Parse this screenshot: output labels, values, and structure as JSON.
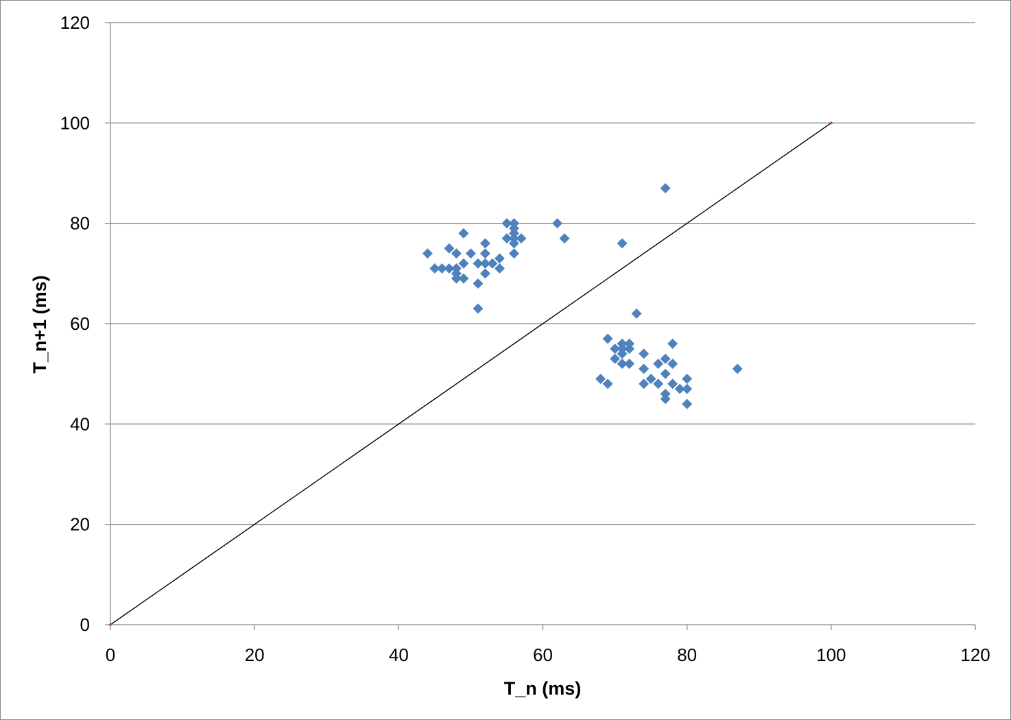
{
  "chart_data": {
    "type": "scatter",
    "title": "",
    "xlabel": "T_n (ms)",
    "ylabel": "T_n+1 (ms)",
    "xlim": [
      0,
      120
    ],
    "ylim": [
      0,
      120
    ],
    "x_ticks": [
      "0",
      "20",
      "40",
      "60",
      "80",
      "100",
      "120"
    ],
    "y_ticks": [
      "0",
      "20",
      "40",
      "60",
      "80",
      "100",
      "120"
    ],
    "grid": "horizontal major gridlines",
    "legend": "none",
    "series": [
      {
        "marker": "diamond",
        "color": "#4F81BD",
        "points": [
          [
            44,
            74
          ],
          [
            45,
            71
          ],
          [
            46,
            71
          ],
          [
            47,
            71
          ],
          [
            47,
            75
          ],
          [
            48,
            74
          ],
          [
            48,
            71
          ],
          [
            48,
            70
          ],
          [
            48,
            69
          ],
          [
            49,
            78
          ],
          [
            49,
            72
          ],
          [
            49,
            69
          ],
          [
            50,
            74
          ],
          [
            51,
            72
          ],
          [
            51,
            68
          ],
          [
            51,
            63
          ],
          [
            52,
            76
          ],
          [
            52,
            74
          ],
          [
            52,
            72
          ],
          [
            52,
            70
          ],
          [
            53,
            72
          ],
          [
            54,
            73
          ],
          [
            54,
            71
          ],
          [
            55,
            80
          ],
          [
            55,
            77
          ],
          [
            56,
            80
          ],
          [
            56,
            79
          ],
          [
            56,
            78
          ],
          [
            56,
            77
          ],
          [
            56,
            76
          ],
          [
            56,
            74
          ],
          [
            57,
            77
          ],
          [
            62,
            80
          ],
          [
            63,
            77
          ],
          [
            77,
            87
          ],
          [
            71,
            76
          ],
          [
            73,
            62
          ],
          [
            68,
            49
          ],
          [
            69,
            57
          ],
          [
            69,
            48
          ],
          [
            70,
            55
          ],
          [
            70,
            53
          ],
          [
            71,
            56
          ],
          [
            71,
            55
          ],
          [
            71,
            54
          ],
          [
            71,
            52
          ],
          [
            72,
            56
          ],
          [
            72,
            55
          ],
          [
            72,
            52
          ],
          [
            74,
            54
          ],
          [
            74,
            51
          ],
          [
            74,
            48
          ],
          [
            75,
            49
          ],
          [
            76,
            52
          ],
          [
            76,
            48
          ],
          [
            77,
            53
          ],
          [
            77,
            50
          ],
          [
            77,
            46
          ],
          [
            77,
            45
          ],
          [
            78,
            56
          ],
          [
            78,
            52
          ],
          [
            78,
            48
          ],
          [
            79,
            47
          ],
          [
            80,
            49
          ],
          [
            80,
            47
          ],
          [
            80,
            44
          ],
          [
            87,
            51
          ]
        ]
      },
      {
        "type": "line",
        "color": "#000000",
        "x": [
          0,
          100
        ],
        "y": [
          0,
          100
        ]
      }
    ]
  }
}
